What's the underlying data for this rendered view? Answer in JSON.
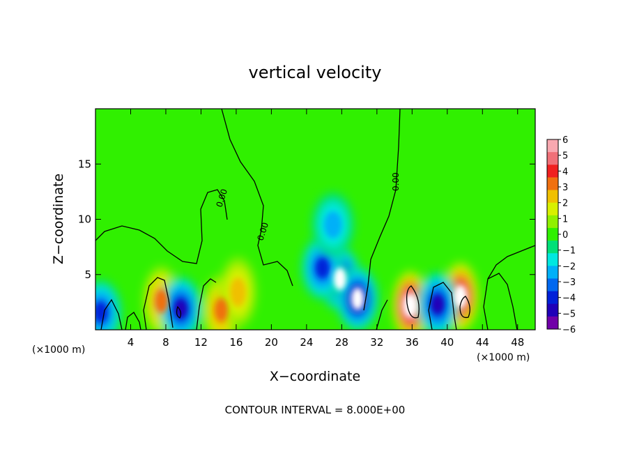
{
  "chart_data": {
    "type": "contour",
    "title": "vertical velocity",
    "xlabel": "X−coordinate",
    "ylabel": "Z−coordinate",
    "x_unit": "(×1000 m)",
    "z_unit": "(×1000 m)",
    "xlim": [
      0,
      50
    ],
    "ylim": [
      0,
      20
    ],
    "x_ticks": [
      "4",
      "8",
      "12",
      "16",
      "20",
      "24",
      "28",
      "32",
      "36",
      "40",
      "44",
      "48"
    ],
    "y_ticks": [
      "5",
      "10",
      "15"
    ],
    "colorbar": {
      "levels": [
        "6",
        "5",
        "4",
        "3",
        "2",
        "1",
        "0",
        "−1",
        "−2",
        "−3",
        "−4",
        "−5",
        "−6"
      ],
      "colors": [
        "#f8a8b0",
        "#f07078",
        "#f02020",
        "#f07010",
        "#f0c000",
        "#d8f000",
        "#90f000",
        "#30f000",
        "#00e078",
        "#00e8e0",
        "#00b0f8",
        "#0068f0",
        "#0020d8",
        "#2000b8",
        "#7000a8"
      ]
    },
    "contour_label": "0.00",
    "contour_interval_text": "CONTOUR INTERVAL = 8.000E+00",
    "features": [
      {
        "kind": "updraft",
        "x": 35.8,
        "z": 2.2,
        "w": 7.5
      },
      {
        "kind": "updraft",
        "x": 41.5,
        "z": 3.0,
        "w": 7.2
      },
      {
        "kind": "updraft",
        "x": 7.5,
        "z": 2.6,
        "w": 4.3
      },
      {
        "kind": "updraft",
        "x": 14.3,
        "z": 1.8,
        "w": 4.0
      },
      {
        "kind": "updraft",
        "x": 16.2,
        "z": 3.4,
        "w": 3.4
      },
      {
        "kind": "downdraft",
        "x": 27.8,
        "z": 4.6,
        "w": -7.0
      },
      {
        "kind": "downdraft",
        "x": 29.8,
        "z": 2.8,
        "w": -7.0
      },
      {
        "kind": "downdraft",
        "x": 25.8,
        "z": 5.6,
        "w": -5.2
      },
      {
        "kind": "downdraft",
        "x": 27.0,
        "z": 9.5,
        "w": -2.6
      },
      {
        "kind": "downdraft",
        "x": 38.9,
        "z": 2.3,
        "w": -5.5
      },
      {
        "kind": "downdraft",
        "x": 9.7,
        "z": 1.9,
        "w": -6.0
      },
      {
        "kind": "downdraft",
        "x": 0.6,
        "z": 1.6,
        "w": -4.5
      }
    ]
  }
}
